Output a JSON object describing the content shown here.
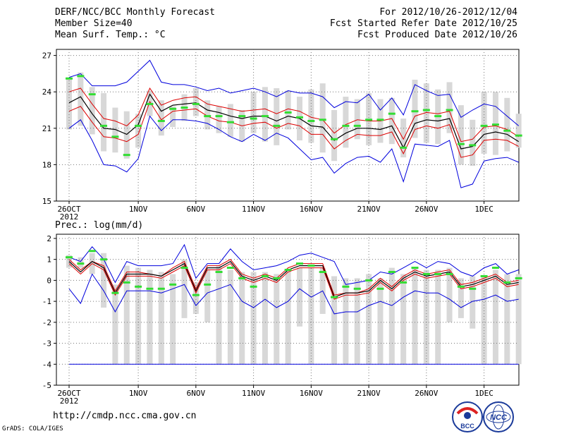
{
  "header": {
    "line1_left": "DERF/NCC/BCC Monthly Forecast",
    "line2_left": "Member Size=40",
    "line3_left": "Mean Surf. Temp.: °C",
    "line1_right": "For 2012/10/26-2012/12/04",
    "line2_right": "Fcst Started Refer Date 2012/10/25",
    "line3_right": "Fcst Produced Date 2012/10/26"
  },
  "footer": {
    "url": "http://cmdp.ncc.cma.gov.cn",
    "credit": "GrADS: COLA/IGES",
    "logo1_text": "BCC",
    "logo2_text": "NCC"
  },
  "colors": {
    "max_min": "#0000dd",
    "range": "#dd0000",
    "mean": "#000000",
    "observed": "#33dd33",
    "box": "#d8d8d8"
  },
  "chart_data": [
    {
      "type": "box-line",
      "title": "Mean Surf. Temp.: °C",
      "ylim": [
        15,
        27.5
      ],
      "yticks": [
        15,
        18,
        21,
        24,
        27
      ],
      "xtick_labels": [
        {
          "day": 0,
          "label": "26OCT"
        },
        {
          "day": 6,
          "label": "1NOV"
        },
        {
          "day": 11,
          "label": "6NOV"
        },
        {
          "day": 16,
          "label": "11NOV"
        },
        {
          "day": 21,
          "label": "16NOV"
        },
        {
          "day": 26,
          "label": "21NOV"
        },
        {
          "day": 31,
          "label": "26NOV"
        },
        {
          "day": 36,
          "label": "1DEC"
        }
      ],
      "year_label": "2012",
      "series": [
        {
          "name": "max",
          "values": [
            21.0,
            21.7,
            20.0,
            18.0,
            17.9,
            17.4,
            18.5,
            22.0,
            20.8,
            21.7,
            21.7,
            21.6,
            21.4,
            20.9,
            20.3,
            19.9,
            20.5,
            20.0,
            20.6,
            20.2,
            19.3,
            18.4,
            18.6,
            17.3,
            18.1,
            18.6,
            18.7,
            18.2,
            19.3,
            16.6,
            19.7,
            19.6,
            19.5,
            20.0,
            16.1,
            16.4,
            18.3,
            18.5,
            18.6,
            18.2
          ]
        },
        {
          "name": "range_upper",
          "values": [
            22.4,
            22.8,
            21.5,
            20.3,
            20.2,
            19.9,
            20.5,
            23.2,
            21.7,
            22.4,
            22.5,
            22.6,
            22.0,
            21.6,
            21.5,
            21.2,
            21.4,
            21.5,
            21.0,
            21.4,
            21.2,
            20.5,
            20.5,
            19.3,
            20.0,
            20.5,
            20.4,
            20.4,
            20.7,
            18.9,
            20.9,
            21.2,
            21.0,
            21.3,
            18.6,
            18.8,
            20.0,
            20.1,
            20.0,
            19.5
          ]
        },
        {
          "name": "mean",
          "values": [
            23.1,
            23.6,
            22.2,
            21.0,
            20.9,
            20.5,
            21.3,
            23.8,
            22.4,
            22.9,
            23.0,
            23.1,
            22.5,
            22.3,
            22.0,
            21.8,
            22.0,
            22.0,
            21.6,
            22.0,
            21.8,
            21.2,
            21.1,
            20.0,
            20.6,
            21.0,
            21.0,
            20.9,
            21.2,
            19.4,
            21.4,
            21.7,
            21.6,
            21.8,
            19.3,
            19.5,
            20.5,
            20.7,
            20.5,
            19.9
          ]
        },
        {
          "name": "range_lower",
          "values": [
            24.0,
            24.3,
            23.0,
            21.8,
            21.6,
            21.2,
            22.1,
            24.3,
            22.9,
            23.3,
            23.5,
            23.6,
            23.0,
            22.8,
            22.6,
            22.4,
            22.5,
            22.6,
            22.2,
            22.6,
            22.4,
            21.9,
            21.7,
            20.6,
            21.3,
            21.7,
            21.6,
            21.6,
            21.8,
            20.1,
            22.0,
            22.3,
            22.2,
            22.4,
            19.9,
            20.1,
            21.1,
            21.2,
            20.9,
            20.3
          ]
        },
        {
          "name": "min",
          "values": [
            25.2,
            25.5,
            24.5,
            24.5,
            24.5,
            24.8,
            25.7,
            26.6,
            24.8,
            24.6,
            24.6,
            24.4,
            24.1,
            24.3,
            23.9,
            24.1,
            24.3,
            24.0,
            23.6,
            24.1,
            23.9,
            23.9,
            23.6,
            22.7,
            23.2,
            23.1,
            23.8,
            22.5,
            23.5,
            22.1,
            24.6,
            24.1,
            23.7,
            23.8,
            21.9,
            22.5,
            23.0,
            22.8,
            22.0,
            21.2
          ]
        }
      ],
      "observed": [
        25.1,
        25.3,
        23.8,
        21.2,
        20.3,
        18.8,
        21.2,
        23.0,
        21.6,
        22.6,
        22.7,
        23.0,
        22.0,
        22.0,
        21.5,
        22.0,
        21.8,
        22.0,
        21.2,
        22.3,
        21.9,
        21.6,
        21.7,
        20.1,
        21.2,
        21.2,
        21.7,
        21.7,
        22.2,
        19.4,
        22.4,
        22.5,
        22.0,
        22.5,
        19.7,
        19.6,
        21.2,
        21.3,
        20.8,
        20.4
      ],
      "box_low": [
        20.9,
        21.2,
        20.5,
        19.1,
        19.0,
        18.5,
        19.4,
        22.0,
        20.4,
        21.1,
        21.6,
        22.0,
        20.9,
        20.6,
        20.3,
        19.9,
        20.6,
        19.9,
        19.6,
        20.9,
        20.0,
        19.8,
        19.0,
        18.3,
        19.4,
        20.1,
        19.6,
        19.8,
        19.7,
        18.6,
        20.2,
        19.8,
        19.7,
        20.6,
        18.0,
        17.9,
        18.9,
        18.8,
        19.1,
        19.4
      ],
      "box_high": [
        25.2,
        25.6,
        24.4,
        23.9,
        22.7,
        22.4,
        22.2,
        24.1,
        23.3,
        22.8,
        23.8,
        24.3,
        23.3,
        22.8,
        23.0,
        22.5,
        24.0,
        24.4,
        24.3,
        24.1,
        23.6,
        24.2,
        24.7,
        22.5,
        23.6,
        23.4,
        23.9,
        23.4,
        23.5,
        21.8,
        25.0,
        24.7,
        24.2,
        24.8,
        22.9,
        21.7,
        24.0,
        24.0,
        23.5,
        22.2
      ]
    },
    {
      "type": "box-line",
      "title": "Prec.: log(mm/d)",
      "ylim": [
        -5,
        2.2
      ],
      "yticks": [
        -5,
        -4,
        -3,
        -2,
        -1,
        0,
        1,
        2
      ],
      "xtick_labels": [
        {
          "day": 0,
          "label": "26OCT"
        },
        {
          "day": 6,
          "label": "1NOV"
        },
        {
          "day": 11,
          "label": "6NOV"
        },
        {
          "day": 16,
          "label": "11NOV"
        },
        {
          "day": 21,
          "label": "16NOV"
        },
        {
          "day": 26,
          "label": "21NOV"
        },
        {
          "day": 31,
          "label": "26NOV"
        },
        {
          "day": 36,
          "label": "1DEC"
        }
      ],
      "year_label": "2012",
      "floor": -4,
      "series": [
        {
          "name": "max",
          "values": [
            1.1,
            0.9,
            1.6,
            1.0,
            -0.1,
            0.9,
            0.7,
            0.7,
            0.7,
            0.8,
            1.7,
            0.1,
            0.8,
            0.8,
            1.5,
            0.9,
            0.5,
            0.6,
            0.7,
            0.9,
            1.2,
            1.3,
            1.1,
            0.9,
            -0.2,
            -0.1,
            0.0,
            0.4,
            0.3,
            0.6,
            0.9,
            0.6,
            0.9,
            0.8,
            0.4,
            0.2,
            0.6,
            0.8,
            0.3,
            0.5
          ]
        },
        {
          "name": "range_upper",
          "values": [
            1.0,
            0.5,
            0.9,
            0.7,
            -0.5,
            0.4,
            0.4,
            0.3,
            0.2,
            0.6,
            0.9,
            -0.4,
            0.7,
            0.7,
            1.0,
            0.3,
            0.1,
            0.3,
            0.1,
            0.6,
            0.8,
            0.8,
            0.8,
            -0.7,
            -0.6,
            -0.6,
            -0.4,
            0.1,
            -0.3,
            0.2,
            0.5,
            0.3,
            0.4,
            0.5,
            -0.2,
            -0.1,
            0.1,
            0.3,
            -0.1,
            0.0
          ]
        },
        {
          "name": "mean",
          "values": [
            0.9,
            0.4,
            0.9,
            0.6,
            -0.6,
            0.3,
            0.3,
            0.3,
            0.2,
            0.5,
            0.8,
            -0.5,
            0.6,
            0.6,
            0.9,
            0.2,
            0.0,
            0.2,
            0.0,
            0.5,
            0.7,
            0.7,
            0.7,
            -0.8,
            -0.6,
            -0.6,
            -0.5,
            0.0,
            -0.4,
            0.1,
            0.4,
            0.2,
            0.3,
            0.4,
            -0.3,
            -0.2,
            0.0,
            0.2,
            -0.2,
            -0.1
          ]
        },
        {
          "name": "range_lower",
          "values": [
            0.8,
            0.3,
            0.8,
            0.5,
            -0.7,
            0.2,
            0.2,
            0.2,
            0.1,
            0.4,
            0.7,
            -0.6,
            0.5,
            0.5,
            0.8,
            0.1,
            -0.1,
            0.1,
            -0.1,
            0.4,
            0.6,
            0.6,
            0.6,
            -0.9,
            -0.7,
            -0.7,
            -0.6,
            -0.1,
            -0.5,
            0.0,
            0.3,
            0.1,
            0.2,
            0.3,
            -0.4,
            -0.3,
            -0.1,
            0.1,
            -0.3,
            -0.2
          ]
        },
        {
          "name": "min",
          "values": [
            -0.4,
            -1.1,
            0.3,
            -0.5,
            -1.5,
            -0.5,
            -0.5,
            -0.5,
            -0.6,
            -0.4,
            -0.2,
            -1.2,
            -0.6,
            -0.4,
            -0.2,
            -1.0,
            -1.3,
            -0.9,
            -1.3,
            -1.0,
            -0.4,
            -0.8,
            -0.5,
            -1.6,
            -1.5,
            -1.5,
            -1.2,
            -1.0,
            -1.2,
            -0.8,
            -0.5,
            -0.6,
            -0.6,
            -0.9,
            -1.3,
            -1.0,
            -0.9,
            -0.7,
            -1.0,
            -0.9
          ]
        }
      ],
      "observed": [
        1.1,
        0.8,
        1.4,
        1.0,
        -0.6,
        -0.1,
        -0.3,
        -0.4,
        -0.4,
        -0.2,
        0.6,
        -0.7,
        -0.2,
        0.4,
        0.6,
        0.1,
        -0.3,
        0.2,
        0.1,
        0.5,
        0.8,
        0.7,
        0.4,
        -0.8,
        -0.3,
        -0.4,
        0.0,
        -0.4,
        0.4,
        -0.1,
        0.6,
        0.3,
        0.3,
        0.3,
        -0.3,
        -0.4,
        0.2,
        0.6,
        -0.1,
        0.1
      ],
      "box_low": [
        0.6,
        0.6,
        0.3,
        -1.3,
        -4.0,
        -4.0,
        -4.0,
        -4.0,
        -4.0,
        -4.0,
        -1.8,
        -1.6,
        -2.0,
        -4.0,
        -4.0,
        -4.0,
        -4.0,
        -4.0,
        -4.0,
        -4.0,
        -2.2,
        -4.0,
        -1.6,
        -4.0,
        -4.0,
        -4.0,
        -4.0,
        -4.0,
        -4.0,
        -4.0,
        -4.0,
        -4.0,
        -4.0,
        -2.0,
        -1.8,
        -2.3,
        -4.0,
        -4.0,
        -4.0,
        -4.0
      ],
      "box_high": [
        1.2,
        1.1,
        1.3,
        1.3,
        -0.2,
        0.7,
        0.6,
        0.5,
        0.4,
        0.3,
        1.0,
        -0.1,
        0.5,
        0.7,
        0.5,
        0.4,
        0.4,
        0.4,
        0.3,
        0.5,
        0.6,
        0.6,
        0.6,
        0.2,
        0.1,
        0.1,
        0.3,
        0.1,
        0.6,
        0.3,
        0.6,
        0.5,
        0.5,
        0.6,
        0.1,
        0.2,
        0.2,
        0.5,
        0.3,
        0.3
      ]
    }
  ]
}
